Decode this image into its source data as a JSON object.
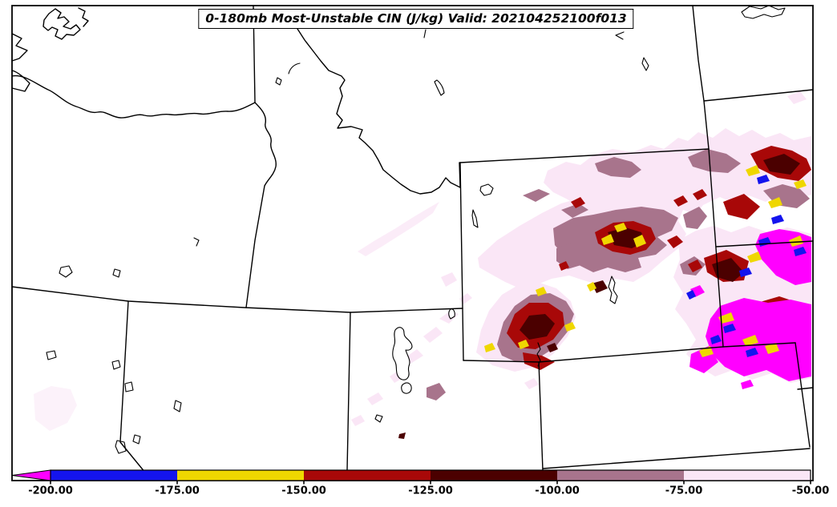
{
  "figure": {
    "title": "0-180mb Most-Unstable CIN (J/kg) Valid: 202104252100f013",
    "variable": "0-180mb Most-Unstable CIN",
    "units": "J/kg",
    "valid_stamp": "202104252100f013"
  },
  "palette": {
    "palepink": "#fae6f6",
    "mauve": "#a8748c",
    "darkred": "#a80808",
    "maroon": "#4b0000",
    "yellow": "#efd700",
    "blue": "#1414ee",
    "magenta": "#ff00ff",
    "line": "#000000",
    "background": "#ffffff"
  },
  "colorbar": {
    "orientation": "horizontal",
    "under_range_arrow_color": "#ff00ff",
    "ticks": [
      {
        "label": "-200.00",
        "value": -200
      },
      {
        "label": "-175.00",
        "value": -175
      },
      {
        "label": "-150.00",
        "value": -150
      },
      {
        "label": "-125.00",
        "value": -125
      },
      {
        "label": "-100.00",
        "value": -100
      },
      {
        "label": "-75.00",
        "value": -75
      },
      {
        "label": "-50.00",
        "value": -50
      }
    ],
    "segments": [
      {
        "from": -200,
        "to": -175,
        "color": "#1414ee"
      },
      {
        "from": -175,
        "to": -150,
        "color": "#efd700"
      },
      {
        "from": -150,
        "to": -125,
        "color": "#a80808"
      },
      {
        "from": -125,
        "to": -100,
        "color": "#4b0000"
      },
      {
        "from": -100,
        "to": -75,
        "color": "#a8748c"
      },
      {
        "from": -75,
        "to": -50,
        "color": "#fae6f6"
      }
    ]
  },
  "chart_data": {
    "type": "filled-contour-map",
    "title": "0-180mb Most-Unstable CIN (J/kg) Valid: 202104252100f013",
    "colorbar_levels": [
      -200,
      -175,
      -150,
      -125,
      -100,
      -75,
      -50
    ],
    "colorbar_colors": [
      "#1414ee",
      "#efd700",
      "#a80808",
      "#4b0000",
      "#a8748c",
      "#fae6f6"
    ],
    "under_range_color": "#ff00ff",
    "legend_position": "bottom"
  }
}
